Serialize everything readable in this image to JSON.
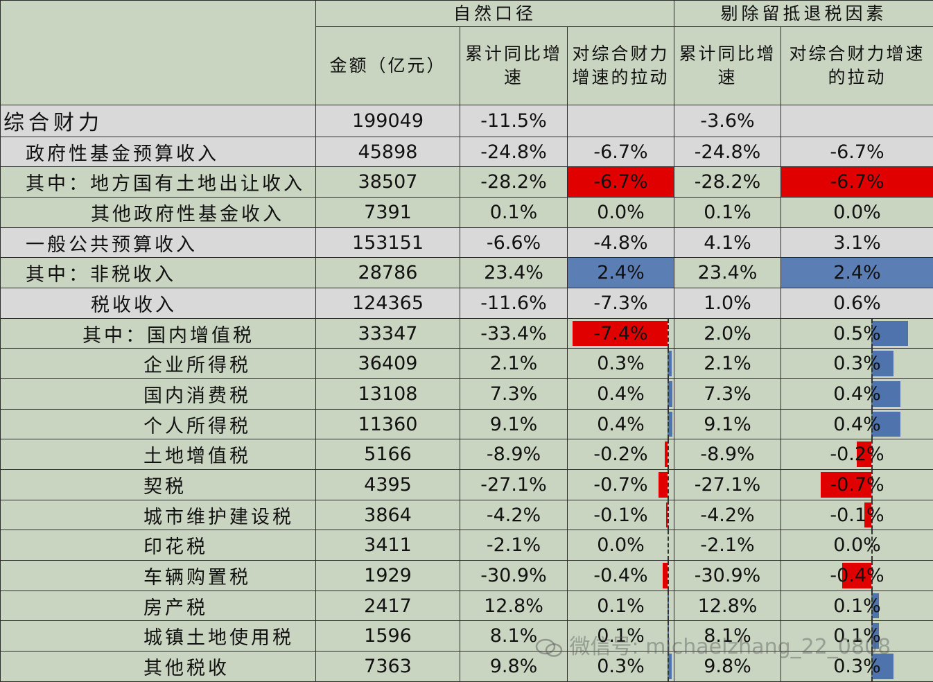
{
  "chart_data": {
    "type": "table",
    "group_headers": [
      "自然口径",
      "剔除留抵退税因素"
    ],
    "columns": [
      "金额（亿元）",
      "累计同比增速",
      "对综合财力增速的拉动",
      "累计同比增速",
      "对综合财力增速的拉动"
    ],
    "rows": [
      {
        "name": "综合财力",
        "level": 0,
        "bg": "gray",
        "cells": [
          "199049",
          "-11.5%",
          "",
          "-3.6%",
          ""
        ]
      },
      {
        "name": "政府性基金预算收入",
        "level": 1,
        "bg": "gray",
        "cells": [
          "45898",
          "-24.8%",
          "-6.7%",
          "-24.8%",
          "-6.7%"
        ]
      },
      {
        "name": "其中：地方国有土地出让收入",
        "level": 1,
        "bg": "green",
        "cells": [
          "38507",
          "-28.2%",
          "-6.7%",
          "-28.2%",
          "-6.7%"
        ],
        "fill": [
          "",
          "",
          "red",
          "",
          "red"
        ]
      },
      {
        "name": "其他政府性基金收入",
        "level": 2,
        "bg": "green",
        "cells": [
          "7391",
          "0.1%",
          "0.0%",
          "0.1%",
          "0.0%"
        ]
      },
      {
        "name": "一般公共预算收入",
        "level": 1,
        "bg": "gray",
        "cells": [
          "153151",
          "-6.6%",
          "-4.8%",
          "4.1%",
          "3.1%"
        ]
      },
      {
        "name": "其中：非税收入",
        "level": 1,
        "bg": "green",
        "cells": [
          "28786",
          "23.4%",
          "2.4%",
          "23.4%",
          "2.4%"
        ],
        "fill": [
          "",
          "",
          "blue",
          "",
          "blue"
        ]
      },
      {
        "name": "税收收入",
        "level": 2,
        "bg": "gray",
        "cells": [
          "124365",
          "-11.6%",
          "-7.3%",
          "1.0%",
          "0.6%"
        ]
      },
      {
        "name": "其中：国内增值税",
        "level": 3,
        "bg": "green",
        "cells": [
          "33347",
          "-33.4%",
          "-7.4%",
          "2.0%",
          "0.5%"
        ],
        "bar": true
      },
      {
        "name": "企业所得税",
        "level": 4,
        "bg": "green",
        "cells": [
          "36409",
          "2.1%",
          "0.3%",
          "2.1%",
          "0.3%"
        ],
        "bar": true
      },
      {
        "name": "国内消费税",
        "level": 4,
        "bg": "green",
        "cells": [
          "13108",
          "7.3%",
          "0.4%",
          "7.3%",
          "0.4%"
        ],
        "bar": true
      },
      {
        "name": "个人所得税",
        "level": 4,
        "bg": "green",
        "cells": [
          "11360",
          "9.1%",
          "0.4%",
          "9.1%",
          "0.4%"
        ],
        "bar": true
      },
      {
        "name": "土地增值税",
        "level": 4,
        "bg": "green",
        "cells": [
          "5166",
          "-8.9%",
          "-0.2%",
          "-8.9%",
          "-0.2%"
        ],
        "bar": true
      },
      {
        "name": "契税",
        "level": 4,
        "bg": "green",
        "cells": [
          "4395",
          "-27.1%",
          "-0.7%",
          "-27.1%",
          "-0.7%"
        ],
        "bar": true
      },
      {
        "name": "城市维护建设税",
        "level": 4,
        "bg": "green",
        "cells": [
          "3864",
          "-4.2%",
          "-0.1%",
          "-4.2%",
          "-0.1%"
        ],
        "bar": true
      },
      {
        "name": "印花税",
        "level": 4,
        "bg": "green",
        "cells": [
          "3411",
          "-2.1%",
          "0.0%",
          "-2.1%",
          "0.0%"
        ],
        "bar": true
      },
      {
        "name": "车辆购置税",
        "level": 4,
        "bg": "green",
        "cells": [
          "1929",
          "-30.9%",
          "-0.4%",
          "-30.9%",
          "-0.4%"
        ],
        "bar": true
      },
      {
        "name": "房产税",
        "level": 4,
        "bg": "green",
        "cells": [
          "2417",
          "12.8%",
          "0.1%",
          "12.8%",
          "0.1%"
        ],
        "bar": true
      },
      {
        "name": "城镇土地使用税",
        "level": 4,
        "bg": "green",
        "cells": [
          "1596",
          "8.1%",
          "0.1%",
          "8.1%",
          "0.1%"
        ],
        "bar": true
      },
      {
        "name": "其他税收",
        "level": 4,
        "bg": "green",
        "cells": [
          "7363",
          "9.8%",
          "0.3%",
          "9.8%",
          "0.3%"
        ],
        "bar": true
      }
    ]
  },
  "watermark": "微信号: michaelzhang_22_0808",
  "colors": {
    "negative_fill": "#e00000",
    "positive_fill": "#5b7fb5",
    "gray_row": "#d9d9d9",
    "green_row": "#c9d5c1"
  }
}
